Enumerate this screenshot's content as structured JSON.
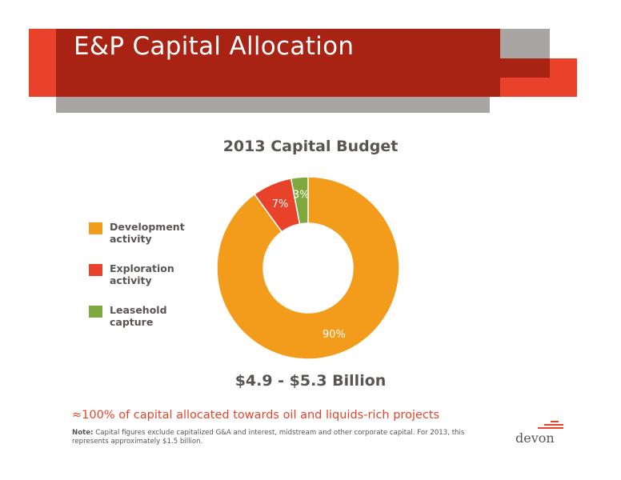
{
  "header": {
    "title": "E&P Capital Allocation"
  },
  "chart_data": {
    "type": "pie",
    "title": "2013 Capital Budget",
    "categories": [
      "Development activity",
      "Exploration activity",
      "Leasehold capture"
    ],
    "values": [
      90,
      7,
      3
    ],
    "labels": [
      "90%",
      "7%",
      "3%"
    ],
    "colors": [
      "#f39c1c",
      "#e8432a",
      "#7fa93e"
    ],
    "donut": true,
    "legend_position": "left"
  },
  "legend": [
    {
      "line1": "Development",
      "line2": "activity"
    },
    {
      "line1": "Exploration",
      "line2": "activity"
    },
    {
      "line1": "Leasehold",
      "line2": "capture"
    }
  ],
  "budget_text": "$4.9 - $5.3 Billion",
  "allocation_text": "≈100% of capital allocated towards oil and liquids-rich projects",
  "note": {
    "label": "Note:",
    "text": " Capital figures exclude capitalized G&A and interest, midstream and other corporate capital. For 2013, this represents approximately $1.5 billion."
  },
  "logo": {
    "text": "devon",
    "color": "#e8432a"
  }
}
